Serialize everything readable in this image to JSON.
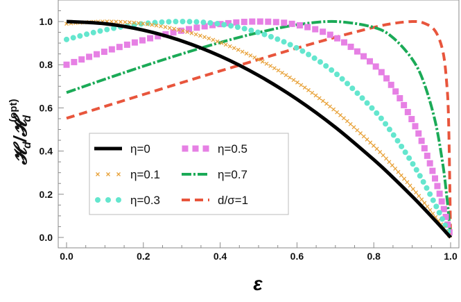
{
  "chart_data": {
    "type": "line",
    "xlabel": "ε",
    "ylabel": "𝓗_d/𝓗_d^(opt)",
    "ylabel_main": "𝓗",
    "ylabel_sub": "d",
    "ylabel_sep": "/",
    "ylabel_sup": "(opt)",
    "xlim": [
      0,
      1
    ],
    "ylim": [
      -0.04,
      1.1
    ],
    "xticks": [
      "0.0",
      "0.2",
      "0.4",
      "0.6",
      "0.8",
      "1.0"
    ],
    "yticks": [
      "0.0",
      "0.2",
      "0.4",
      "0.6",
      "0.8",
      "1.0"
    ],
    "grid": false,
    "legend_position": "lower-left",
    "x": [
      0,
      0.1,
      0.2,
      0.3,
      0.4,
      0.5,
      0.6,
      0.7,
      0.8,
      0.85,
      0.9,
      0.93,
      0.96,
      0.98,
      0.99,
      0.995,
      1
    ],
    "series": [
      {
        "name": "η=0",
        "style": "solid",
        "color": "#000000",
        "values": [
          1,
          0.99,
          0.96,
          0.91,
          0.84,
          0.75,
          0.64,
          0.51,
          0.36,
          0.2775,
          0.19,
          0.1351,
          0.0784,
          0.0396,
          0.0199,
          0.01,
          0
        ]
      },
      {
        "name": "η=0.1",
        "style": "cross",
        "color": "#E8A23A",
        "values": [
          0.99,
          1.0,
          0.99,
          0.958,
          0.903,
          0.824,
          0.719,
          0.586,
          0.424,
          0.33,
          0.229,
          0.164,
          0.0958,
          0.0486,
          0.0245,
          0.0123,
          0
        ]
      },
      {
        "name": "η=0.3",
        "style": "dot",
        "color": "#64E6CE",
        "values": [
          0.917,
          0.961,
          0.99,
          1.0,
          0.988,
          0.949,
          0.877,
          0.761,
          0.59,
          0.478,
          0.345,
          0.254,
          0.153,
          0.0789,
          0.0401,
          0.0202,
          0
        ]
      },
      {
        "name": "η=0.5",
        "style": "square",
        "color": "#E680E4",
        "values": [
          0.8,
          0.861,
          0.914,
          0.958,
          0.988,
          1.0,
          0.985,
          0.927,
          0.8,
          0.694,
          0.543,
          0.422,
          0.27,
          0.147,
          0.0765,
          0.0391,
          0
        ]
      },
      {
        "name": "η=0.7",
        "style": "dashdot",
        "color": "#1BAA57",
        "values": [
          0.671,
          0.733,
          0.793,
          0.85,
          0.903,
          0.949,
          0.985,
          1.0,
          0.973,
          0.925,
          0.826,
          0.719,
          0.537,
          0.336,
          0.191,
          0.103,
          0
        ]
      },
      {
        "name": "d/σ=1",
        "style": "dashed",
        "color": "#E8553C",
        "values": [
          0.552,
          0.607,
          0.662,
          0.717,
          0.771,
          0.824,
          0.877,
          0.927,
          0.973,
          0.991,
          1.0,
          0.993,
          0.956,
          0.861,
          0.711,
          0.525,
          0
        ]
      }
    ]
  }
}
